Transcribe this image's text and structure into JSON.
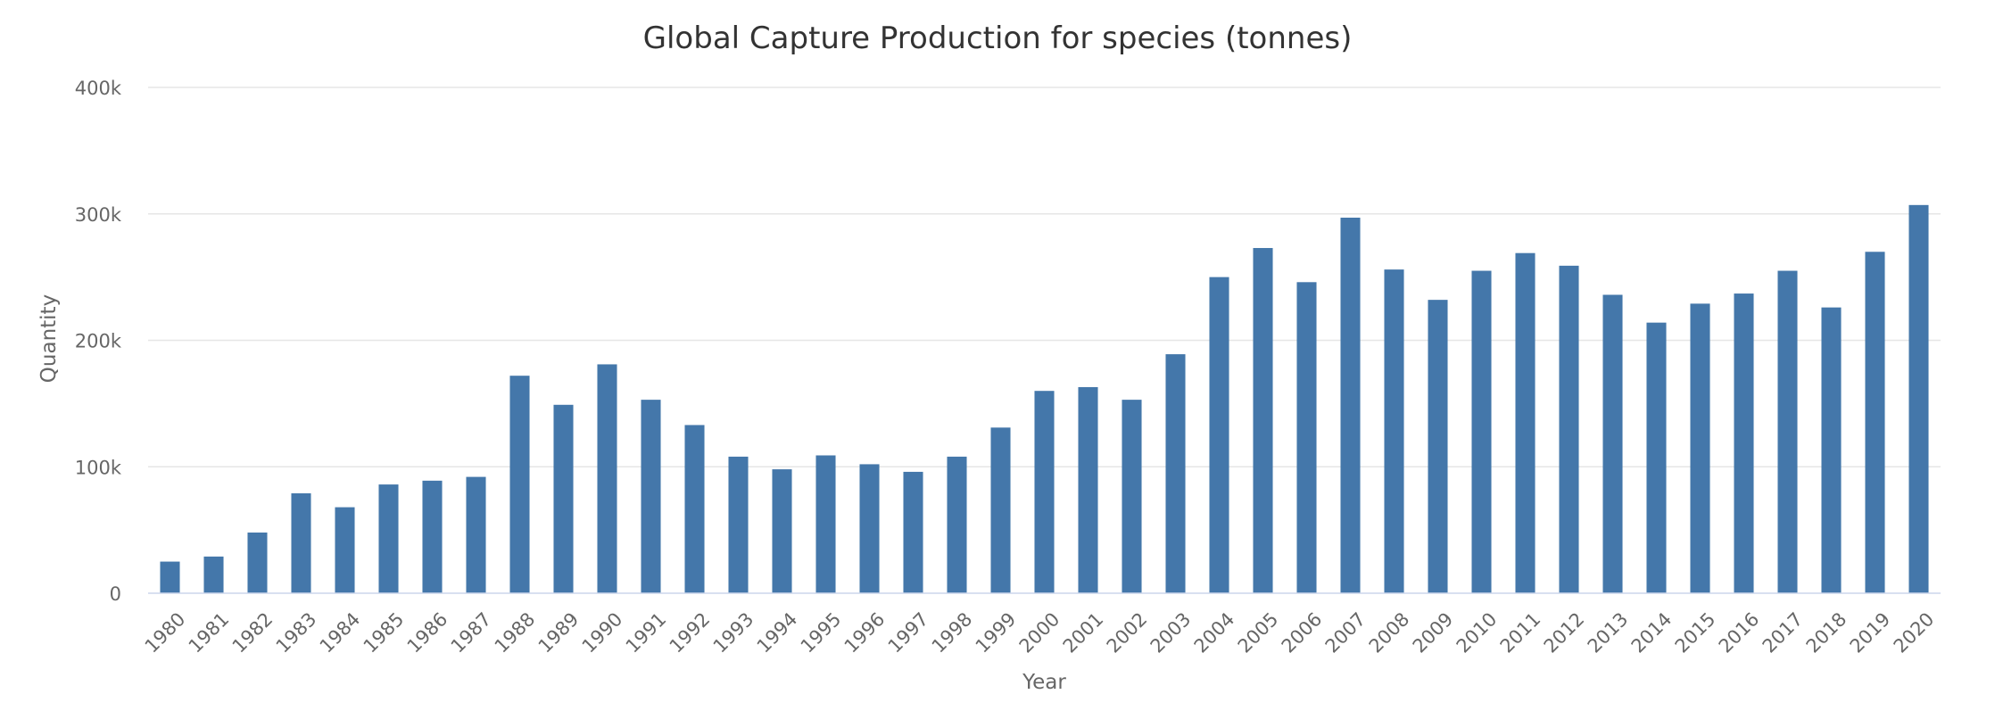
{
  "chart_data": {
    "type": "bar",
    "title": "Global Capture Production for species (tonnes)",
    "xlabel": "Year",
    "ylabel": "Quantity",
    "ylim": [
      0,
      400000
    ],
    "yticks": [
      0,
      100000,
      200000,
      300000,
      400000
    ],
    "ytick_labels": [
      "0",
      "100k",
      "200k",
      "300k",
      "400k"
    ],
    "grid": true,
    "legend": "none",
    "bar_color": "#4477aa",
    "categories": [
      "1980",
      "1981",
      "1982",
      "1983",
      "1984",
      "1985",
      "1986",
      "1987",
      "1988",
      "1989",
      "1990",
      "1991",
      "1992",
      "1993",
      "1994",
      "1995",
      "1996",
      "1997",
      "1998",
      "1999",
      "2000",
      "2001",
      "2002",
      "2003",
      "2004",
      "2005",
      "2006",
      "2007",
      "2008",
      "2009",
      "2010",
      "2011",
      "2012",
      "2013",
      "2014",
      "2015",
      "2016",
      "2017",
      "2018",
      "2019",
      "2020"
    ],
    "values": [
      25000,
      29000,
      48000,
      79000,
      68000,
      86000,
      89000,
      92000,
      172000,
      149000,
      181000,
      153000,
      133000,
      108000,
      98000,
      109000,
      102000,
      96000,
      108000,
      131000,
      160000,
      163000,
      153000,
      189000,
      250000,
      273000,
      246000,
      297000,
      256000,
      232000,
      255000,
      269000,
      259000,
      236000,
      214000,
      229000,
      237000,
      255000,
      226000,
      270000,
      307000
    ]
  }
}
